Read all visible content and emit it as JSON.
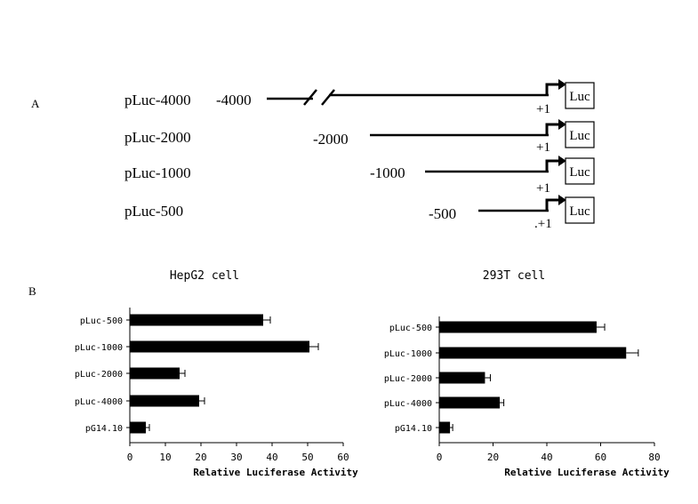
{
  "panelA": {
    "label": "A",
    "luc": "Luc",
    "tss": "+1",
    "tss_last": ".+1",
    "constructs": [
      {
        "name": "pLuc-4000",
        "start": "-4000"
      },
      {
        "name": "pLuc-2000",
        "start": "-2000"
      },
      {
        "name": "pLuc-1000",
        "start": "-1000"
      },
      {
        "name": "pLuc-500",
        "start": "-500"
      }
    ]
  },
  "panelB": {
    "label": "B"
  },
  "chart_data": [
    {
      "type": "bar",
      "orientation": "horizontal",
      "title": "HepG2 cell",
      "xlabel": "Relative Luciferase Activity",
      "categories": [
        "pLuc-500",
        "pLuc-1000",
        "pLuc-2000",
        "pLuc-4000",
        "pG14.10"
      ],
      "values": [
        37.5,
        50.5,
        14,
        19.5,
        4.5
      ],
      "errors": [
        2,
        2.5,
        1.5,
        1.5,
        1
      ],
      "xlim": [
        0,
        60
      ],
      "xticks": [
        0,
        10,
        20,
        30,
        40,
        50,
        60
      ]
    },
    {
      "type": "bar",
      "orientation": "horizontal",
      "title": "293T cell",
      "xlabel": "Relative Luciferase Activity",
      "categories": [
        "pLuc-500",
        "pLuc-1000",
        "pLuc-2000",
        "pLuc-4000",
        "pG14.10"
      ],
      "values": [
        58.5,
        69.5,
        17,
        22.5,
        4
      ],
      "errors": [
        3,
        4.5,
        2,
        1.5,
        1
      ],
      "xlim": [
        0,
        80
      ],
      "xticks": [
        0,
        20,
        40,
        60,
        80
      ]
    }
  ]
}
